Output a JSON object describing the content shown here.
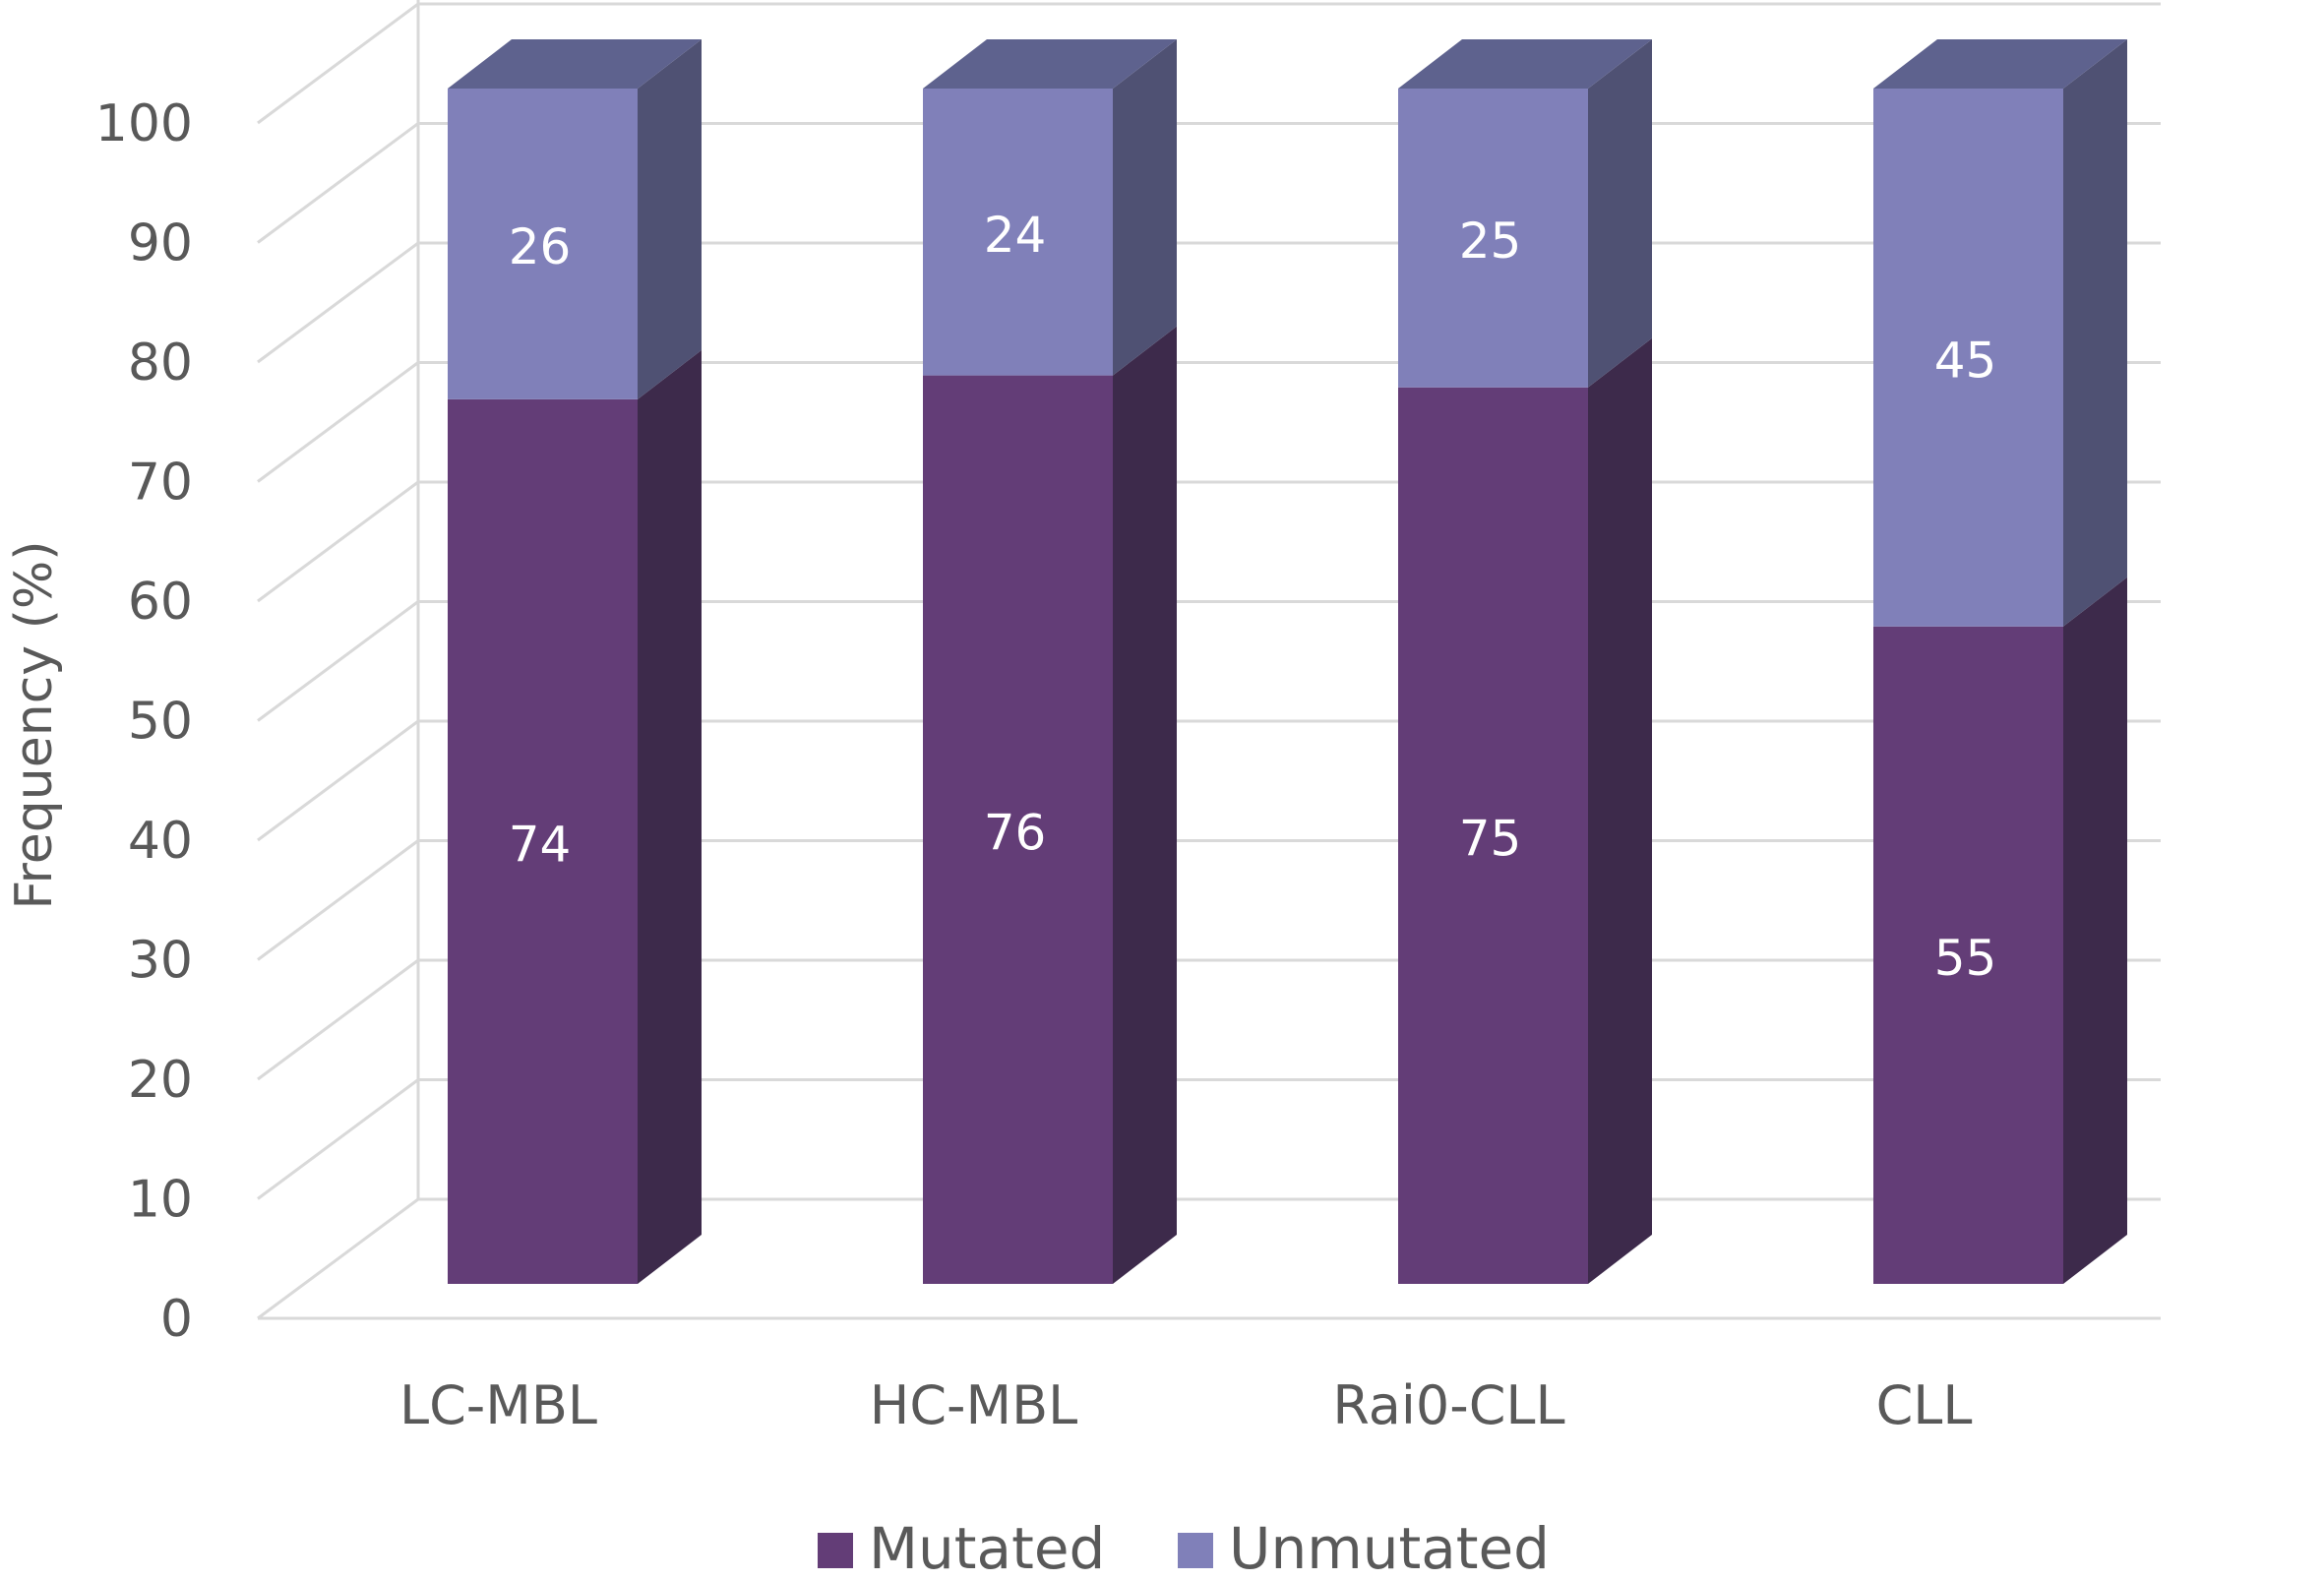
{
  "chart_data": {
    "type": "bar",
    "stacked": true,
    "style": "3d-stacked-column",
    "categories": [
      "LC-MBL",
      "HC-MBL",
      "Rai0-CLL",
      "CLL"
    ],
    "series": [
      {
        "name": "Mutated",
        "values": [
          74,
          76,
          75,
          55
        ],
        "color": "#633d77",
        "side_color": "#3d2a4b",
        "top_color": "#56456e"
      },
      {
        "name": "Unmutated",
        "values": [
          26,
          24,
          25,
          45
        ],
        "color": "#8080b9",
        "side_color": "#4f5173",
        "top_color": "#5e628e"
      }
    ],
    "value_labels": {
      "Mutated": [
        "74",
        "76",
        "75",
        "55"
      ],
      "Unmutated": [
        "26",
        "24",
        "25",
        "45"
      ]
    },
    "title": "",
    "xlabel": "",
    "ylabel": "Frequency (%)",
    "ylim": [
      0,
      100
    ],
    "yticks": [
      "0",
      "10",
      "20",
      "30",
      "40",
      "50",
      "60",
      "70",
      "80",
      "90",
      "100"
    ],
    "grid": true,
    "legend_position": "bottom-center",
    "colors": {
      "grid": "#d9d9d9",
      "text": "#595959",
      "label": "#ffffff"
    }
  }
}
